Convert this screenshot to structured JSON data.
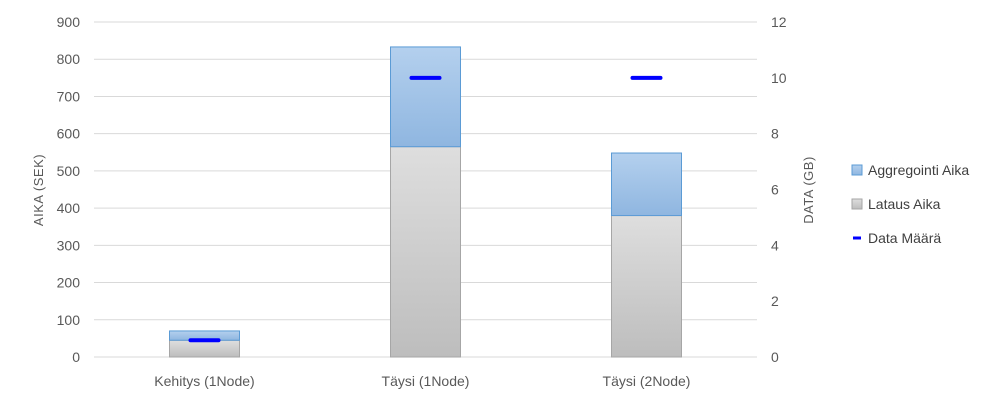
{
  "chart_data": {
    "type": "bar",
    "stacked": true,
    "categories": [
      "Kehitys (1Node)",
      "Täysi (1Node)",
      "Täysi (2Node)"
    ],
    "series": [
      {
        "name": "Lataus Aika",
        "axis": "left",
        "kind": "bar",
        "values": [
          45,
          565,
          380
        ],
        "color": "#c8c8c8"
      },
      {
        "name": "Aggregointi Aika",
        "axis": "left",
        "kind": "bar",
        "values": [
          25,
          268,
          168
        ],
        "color": "#9dc3e6"
      },
      {
        "name": "Data Määrä",
        "axis": "right",
        "kind": "marker",
        "values": [
          0.6,
          10,
          10
        ],
        "color": "#0000ff"
      }
    ],
    "legend_order": [
      "Aggregointi Aika",
      "Lataus Aika",
      "Data Määrä"
    ],
    "ylabel": "AIKA (SEK)",
    "y2label": "DATA (GB)",
    "ylim": [
      0,
      900
    ],
    "yticks": [
      0,
      100,
      200,
      300,
      400,
      500,
      600,
      700,
      800,
      900
    ],
    "y2lim": [
      0,
      12
    ],
    "y2ticks": [
      0,
      2,
      4,
      6,
      8,
      10,
      12
    ],
    "grid": true,
    "legend_position": "right"
  }
}
